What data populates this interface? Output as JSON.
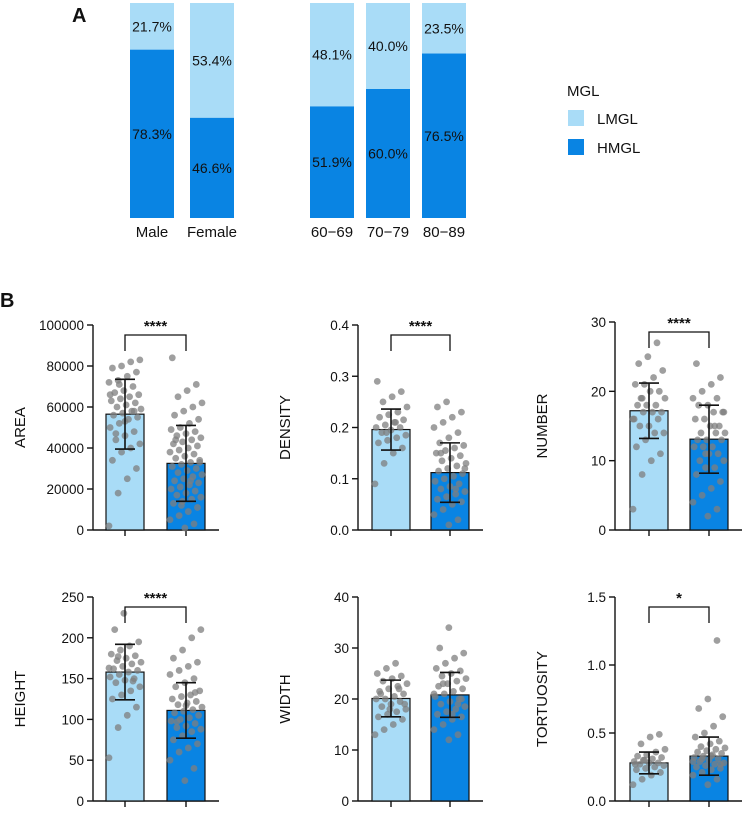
{
  "panel_a_label": "A",
  "panel_b_label": "B",
  "colors": {
    "light": "#a9dcf7",
    "dark": "#0984e3",
    "dot": "#7f7f7f"
  },
  "chart_data": [
    {
      "type": "stacked-bar-100",
      "panel": "A",
      "groups": [
        {
          "categories": [
            "Male",
            "Female"
          ],
          "series": [
            {
              "name": "LMGL",
              "values": [
                21.7,
                53.4
              ],
              "labels": [
                "21.7%",
                "53.4%"
              ]
            },
            {
              "name": "HMGL",
              "values": [
                78.3,
                46.6
              ],
              "labels": [
                "78.3%",
                "46.6%"
              ]
            }
          ]
        },
        {
          "categories": [
            "60−69",
            "70−79",
            "80−89"
          ],
          "series": [
            {
              "name": "LMGL",
              "values": [
                48.1,
                40.0,
                23.5
              ],
              "labels": [
                "48.1%",
                "40.0%",
                "23.5%"
              ]
            },
            {
              "name": "HMGL",
              "values": [
                51.9,
                60.0,
                76.5
              ],
              "labels": [
                "51.9%",
                "60.0%",
                "76.5%"
              ]
            }
          ]
        }
      ],
      "legend": {
        "title": "MGL",
        "entries": [
          "LMGL",
          "HMGL"
        ],
        "placement": "right"
      }
    },
    {
      "type": "bar",
      "panel": "B",
      "ylabel": "AREA",
      "ylim": [
        0,
        100000
      ],
      "ticks": [
        0,
        20000,
        40000,
        60000,
        80000,
        100000
      ],
      "tick_labels": [
        "0",
        "20000",
        "40000",
        "60000",
        "80000",
        "100000"
      ],
      "categories": [
        "LMGL",
        "HMGL"
      ],
      "means": [
        56500,
        32500
      ],
      "sd": [
        17000,
        18500
      ],
      "significance": "****",
      "points": [
        [
          2000,
          18000,
          25000,
          30000,
          34000,
          38000,
          40000,
          42000,
          44000,
          46000,
          48000,
          50000,
          52000,
          54000,
          55000,
          56000,
          57000,
          58000,
          59000,
          60000,
          61000,
          62000,
          63000,
          64000,
          65000,
          66000,
          67000,
          68000,
          70000,
          72000,
          73000,
          75000,
          77000,
          79000,
          80000,
          82000,
          83000,
          47000,
          53000,
          58000,
          66000,
          71000
        ],
        [
          1000,
          3000,
          5000,
          7000,
          9000,
          11000,
          13000,
          14000,
          15000,
          16000,
          17000,
          18000,
          19000,
          20000,
          21000,
          22000,
          23000,
          24000,
          25000,
          26000,
          27000,
          28000,
          29000,
          30000,
          31000,
          32000,
          33000,
          34000,
          35000,
          36000,
          37000,
          38000,
          39000,
          40000,
          41000,
          42000,
          43000,
          44000,
          45000,
          46000,
          47000,
          48000,
          49000,
          50000,
          52000,
          54000,
          56000,
          58000,
          60000,
          62000,
          65000,
          68000,
          71000,
          84000,
          12000,
          24000,
          33000,
          44000
        ]
      ]
    },
    {
      "type": "bar",
      "panel": "B",
      "ylabel": "DENSITY",
      "ylim": [
        0,
        0.4
      ],
      "ticks": [
        0,
        0.1,
        0.2,
        0.3,
        0.4
      ],
      "tick_labels": [
        "0.0",
        "0.1",
        "0.2",
        "0.3",
        "0.4"
      ],
      "categories": [
        "LMGL",
        "HMGL"
      ],
      "means": [
        0.196,
        0.112
      ],
      "sd": [
        0.04,
        0.058
      ],
      "significance": "****",
      "points": [
        [
          0.09,
          0.13,
          0.15,
          0.16,
          0.17,
          0.175,
          0.18,
          0.185,
          0.19,
          0.195,
          0.2,
          0.2,
          0.205,
          0.21,
          0.215,
          0.22,
          0.225,
          0.23,
          0.24,
          0.25,
          0.26,
          0.27,
          0.29,
          0.19,
          0.21
        ],
        [
          0.01,
          0.02,
          0.03,
          0.04,
          0.05,
          0.055,
          0.06,
          0.065,
          0.07,
          0.075,
          0.08,
          0.085,
          0.09,
          0.095,
          0.1,
          0.105,
          0.11,
          0.115,
          0.12,
          0.125,
          0.13,
          0.135,
          0.14,
          0.145,
          0.15,
          0.155,
          0.16,
          0.165,
          0.17,
          0.18,
          0.19,
          0.2,
          0.21,
          0.22,
          0.23,
          0.24,
          0.25,
          0.08,
          0.12,
          0.15
        ]
      ]
    },
    {
      "type": "bar",
      "panel": "B",
      "ylabel": "NUMBER",
      "ylim": [
        0,
        30
      ],
      "ticks": [
        0,
        10,
        20,
        30
      ],
      "tick_labels": [
        "0",
        "10",
        "20",
        "30"
      ],
      "categories": [
        "LMGL",
        "HMGL"
      ],
      "means": [
        17.2,
        13.1
      ],
      "sd": [
        4.0,
        4.9
      ],
      "significance": "****",
      "points": [
        [
          3,
          8,
          10,
          11,
          12,
          13,
          14,
          14,
          15,
          15,
          16,
          16,
          17,
          17,
          17,
          18,
          18,
          18,
          19,
          19,
          20,
          20,
          21,
          21,
          22,
          23,
          24,
          25,
          27,
          16,
          19
        ],
        [
          2,
          3,
          4,
          5,
          6,
          7,
          8,
          9,
          9,
          10,
          10,
          11,
          11,
          12,
          12,
          12,
          13,
          13,
          13,
          14,
          14,
          14,
          15,
          15,
          16,
          16,
          17,
          17,
          18,
          18,
          19,
          19,
          20,
          21,
          22,
          24,
          11,
          15,
          17
        ]
      ]
    },
    {
      "type": "bar",
      "panel": "B",
      "ylabel": "HEIGHT",
      "ylim": [
        0,
        250
      ],
      "ticks": [
        0,
        50,
        100,
        150,
        200,
        250
      ],
      "tick_labels": [
        "0",
        "50",
        "100",
        "150",
        "200",
        "250"
      ],
      "categories": [
        "LMGL",
        "HMGL"
      ],
      "means": [
        158,
        111
      ],
      "sd": [
        34,
        34
      ],
      "significance": "****",
      "points": [
        [
          53,
          90,
          105,
          115,
          125,
          130,
          135,
          140,
          145,
          148,
          150,
          152,
          155,
          158,
          160,
          162,
          165,
          168,
          170,
          172,
          175,
          178,
          180,
          185,
          190,
          195,
          210,
          230,
          147,
          163,
          177
        ],
        [
          25,
          40,
          50,
          60,
          65,
          70,
          75,
          80,
          85,
          88,
          90,
          92,
          95,
          98,
          100,
          102,
          105,
          108,
          110,
          112,
          115,
          118,
          120,
          122,
          125,
          128,
          130,
          135,
          140,
          145,
          150,
          155,
          160,
          165,
          170,
          175,
          185,
          200,
          210,
          97,
          117,
          133
        ]
      ]
    },
    {
      "type": "bar",
      "panel": "B",
      "ylabel": "WIDTH",
      "ylim": [
        0,
        40
      ],
      "ticks": [
        0,
        10,
        20,
        30,
        40
      ],
      "tick_labels": [
        "0",
        "10",
        "20",
        "30",
        "40"
      ],
      "categories": [
        "LMGL",
        "HMGL"
      ],
      "means": [
        20.1,
        20.8
      ],
      "sd": [
        3.6,
        4.4
      ],
      "significance": "",
      "points": [
        [
          13,
          14,
          15,
          16,
          16.5,
          17,
          17.5,
          18,
          18.5,
          19,
          19.5,
          20,
          20,
          20.5,
          21,
          21.5,
          22,
          22.5,
          23,
          23.5,
          24,
          24.5,
          25,
          26,
          27,
          19,
          21,
          18,
          22
        ],
        [
          12,
          13,
          14,
          15,
          16,
          16.5,
          17,
          17.5,
          18,
          18.5,
          19,
          19.5,
          20,
          20.5,
          21,
          21.5,
          22,
          22.5,
          23,
          23.5,
          24,
          24.5,
          25,
          25.5,
          26,
          27,
          28,
          29,
          30,
          34,
          19,
          21,
          23,
          17,
          20
        ]
      ]
    },
    {
      "type": "bar",
      "panel": "B",
      "ylabel": "TORTUOSITY",
      "ylim": [
        0,
        1.5
      ],
      "ticks": [
        0,
        0.5,
        1.0,
        1.5
      ],
      "tick_labels": [
        "0.0",
        "0.5",
        "1.0",
        "1.5"
      ],
      "categories": [
        "LMGL",
        "HMGL"
      ],
      "means": [
        0.28,
        0.33
      ],
      "sd": [
        0.08,
        0.14
      ],
      "significance": "*",
      "points": [
        [
          0.12,
          0.16,
          0.19,
          0.21,
          0.23,
          0.24,
          0.25,
          0.26,
          0.27,
          0.28,
          0.28,
          0.29,
          0.3,
          0.31,
          0.32,
          0.33,
          0.34,
          0.36,
          0.38,
          0.42,
          0.47,
          0.49,
          0.27,
          0.3
        ],
        [
          0.12,
          0.16,
          0.19,
          0.21,
          0.23,
          0.24,
          0.25,
          0.26,
          0.27,
          0.28,
          0.29,
          0.3,
          0.31,
          0.32,
          0.33,
          0.34,
          0.35,
          0.36,
          0.37,
          0.38,
          0.39,
          0.4,
          0.42,
          0.44,
          0.47,
          0.5,
          0.55,
          0.62,
          0.68,
          0.75,
          1.18,
          0.29,
          0.31,
          0.33,
          0.27
        ]
      ]
    }
  ]
}
